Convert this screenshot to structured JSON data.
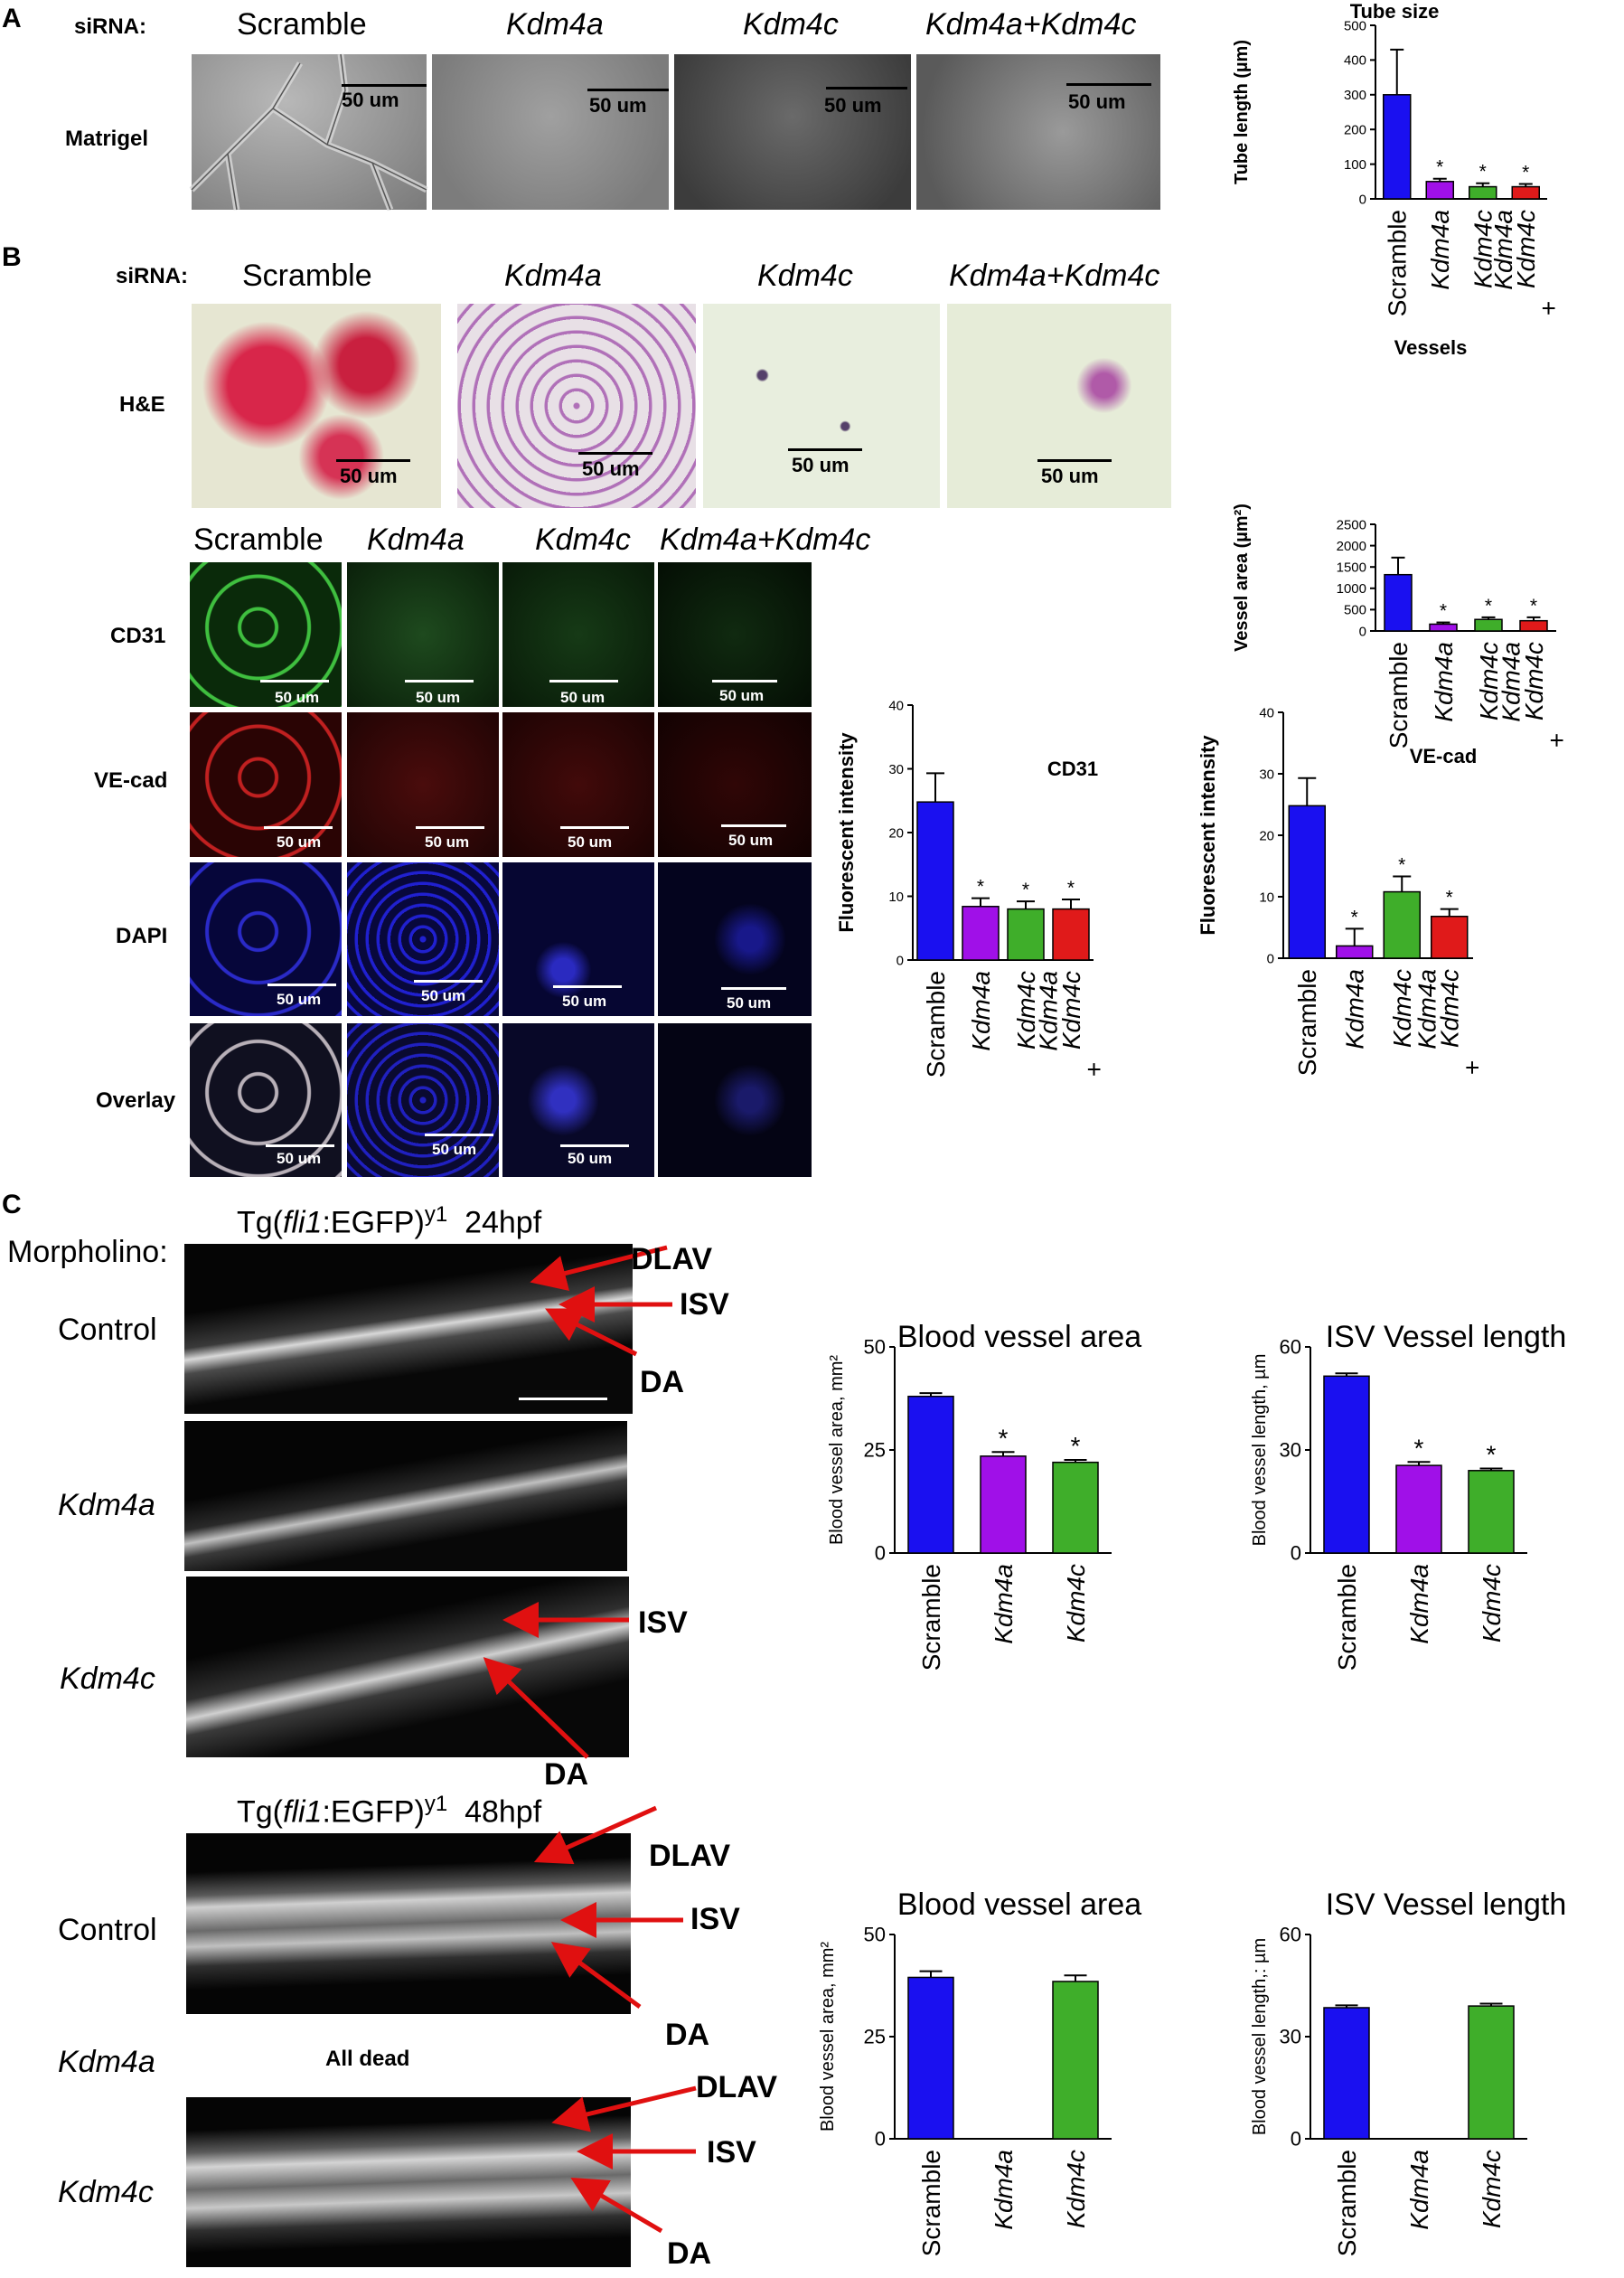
{
  "panels": {
    "A": {
      "letter": "A",
      "sirna_label": "siRNA:",
      "row_label": "Matrigel",
      "columns": [
        "Scramble",
        "Kdm4a",
        "Kdm4c",
        "Kdm4a+Kdm4c"
      ],
      "scalebar": "50 um"
    },
    "B": {
      "letter": "B",
      "sirna_label": "siRNA:",
      "he_label": "H&E",
      "he_columns": [
        "Scramble",
        "Kdm4a",
        "Kdm4c",
        "Kdm4a+Kdm4c"
      ],
      "if_columns": [
        "Scramble",
        "Kdm4a",
        "Kdm4c",
        "Kdm4a+Kdm4c"
      ],
      "if_rows": [
        "CD31",
        "VE-cad",
        "DAPI",
        "Overlay"
      ],
      "scalebar": "50 um"
    },
    "C": {
      "letter": "C",
      "morpholino_label": "Morpholino:",
      "tg_prefix": "Tg(",
      "tg_gene": "fli1",
      "tg_suffix": ":EGFP)",
      "tg_sup": "y1",
      "time_24": "24hpf",
      "time_48": "48hpf",
      "rows_24": [
        "Control",
        "Kdm4a",
        "Kdm4c"
      ],
      "rows_48": [
        "Control",
        "Kdm4a",
        "Kdm4c"
      ],
      "all_dead": "All dead",
      "arrow_labels": {
        "dlav": "DLAV",
        "isv": "ISV",
        "da": "DA"
      }
    }
  },
  "colors": {
    "blue": "#1a10f0",
    "purple": "#a010e8",
    "green": "#3fae2a",
    "red": "#e01a1a"
  },
  "chart_data": [
    {
      "id": "tube",
      "type": "bar",
      "title": "Tube size",
      "ylabel": "Tube length (µm)",
      "categories": [
        "Scramble",
        "Kdm4a",
        "Kdm4c",
        "Kdm4a + Kdm4c"
      ],
      "values": [
        300,
        50,
        35,
        35
      ],
      "errors": [
        130,
        8,
        10,
        8
      ],
      "significant": [
        false,
        true,
        true,
        true
      ],
      "colors": [
        "#1a10f0",
        "#a010e8",
        "#3fae2a",
        "#e01a1a"
      ],
      "ylim": [
        0,
        500
      ],
      "ticks": [
        0,
        100,
        200,
        300,
        400,
        500
      ]
    },
    {
      "id": "vessels",
      "type": "bar",
      "title": "Vessels",
      "ylabel": "Vessel area (µm²)",
      "categories": [
        "Scramble",
        "Kdm4a",
        "Kdm4c",
        "Kdm4a + Kdm4c"
      ],
      "values": [
        1320,
        160,
        270,
        240
      ],
      "errors": [
        400,
        40,
        50,
        80
      ],
      "significant": [
        false,
        true,
        true,
        true
      ],
      "colors": [
        "#1a10f0",
        "#a010e8",
        "#3fae2a",
        "#e01a1a"
      ],
      "ylim": [
        0,
        2500
      ],
      "ticks": [
        0,
        500,
        1000,
        1500,
        2000,
        2500
      ]
    },
    {
      "id": "cd31",
      "type": "bar",
      "title": "CD31",
      "ylabel": "Fluorescent intensity",
      "categories": [
        "Scramble",
        "Kdm4a",
        "Kdm4c",
        "Kdm4a + Kdm4c"
      ],
      "values": [
        24.8,
        8.4,
        8.0,
        8.0
      ],
      "errors": [
        4.5,
        1.3,
        1.2,
        1.5
      ],
      "significant": [
        false,
        true,
        true,
        true
      ],
      "colors": [
        "#1a10f0",
        "#a010e8",
        "#3fae2a",
        "#e01a1a"
      ],
      "ylim": [
        0,
        40
      ],
      "ticks": [
        0,
        10,
        20,
        30,
        40
      ]
    },
    {
      "id": "vecad",
      "type": "bar",
      "title": "VE-cad",
      "ylabel": "Fluorescent intensity",
      "categories": [
        "Scramble",
        "Kdm4a",
        "Kdm4c",
        "Kdm4a + Kdm4c"
      ],
      "values": [
        24.8,
        2.0,
        10.8,
        6.8
      ],
      "errors": [
        4.5,
        2.8,
        2.5,
        1.2
      ],
      "significant": [
        false,
        true,
        true,
        true
      ],
      "colors": [
        "#1a10f0",
        "#a010e8",
        "#3fae2a",
        "#e01a1a"
      ],
      "ylim": [
        0,
        40
      ],
      "ticks": [
        0,
        10,
        20,
        30,
        40
      ]
    },
    {
      "id": "bva24",
      "type": "bar",
      "title": "Blood vessel area",
      "ylabel": "Blood vessel area, mm²",
      "categories": [
        "Scramble",
        "Kdm4a",
        "Kdm4c"
      ],
      "values": [
        38,
        23.5,
        22
      ],
      "errors": [
        0.8,
        1.0,
        0.6
      ],
      "significant": [
        false,
        true,
        true
      ],
      "colors": [
        "#1a10f0",
        "#a010e8",
        "#3fae2a"
      ],
      "ylim": [
        0,
        50
      ],
      "ticks": [
        0,
        25,
        50
      ]
    },
    {
      "id": "isv24",
      "type": "bar",
      "title": "ISV Vessel length",
      "ylabel": "Blood vessel length, µm",
      "categories": [
        "Scramble",
        "Kdm4a",
        "Kdm4c"
      ],
      "values": [
        51.5,
        25.5,
        24
      ],
      "errors": [
        0.8,
        1.0,
        0.6
      ],
      "significant": [
        false,
        true,
        true
      ],
      "colors": [
        "#1a10f0",
        "#a010e8",
        "#3fae2a"
      ],
      "ylim": [
        0,
        60
      ],
      "ticks": [
        0,
        30,
        60
      ]
    },
    {
      "id": "bva48",
      "type": "bar",
      "title": "Blood vessel area",
      "ylabel": "Blood vessel area, mm²",
      "categories": [
        "Scramble",
        "Kdm4a",
        "Kdm4c"
      ],
      "values": [
        39.5,
        0,
        38.5
      ],
      "errors": [
        1.5,
        0,
        1.5
      ],
      "significant": [
        false,
        false,
        false
      ],
      "colors": [
        "#1a10f0",
        "#a010e8",
        "#3fae2a"
      ],
      "ylim": [
        0,
        50
      ],
      "ticks": [
        0,
        25,
        50
      ]
    },
    {
      "id": "isv48",
      "type": "bar",
      "title": "ISV Vessel length",
      "ylabel": "Blood vessel length,: µm",
      "categories": [
        "Scramble",
        "Kdm4a",
        "Kdm4c"
      ],
      "values": [
        38.5,
        0,
        39
      ],
      "errors": [
        0.7,
        0,
        0.7
      ],
      "significant": [
        false,
        false,
        false
      ],
      "colors": [
        "#1a10f0",
        "#a010e8",
        "#3fae2a"
      ],
      "ylim": [
        0,
        60
      ],
      "ticks": [
        0,
        30,
        60
      ]
    }
  ]
}
